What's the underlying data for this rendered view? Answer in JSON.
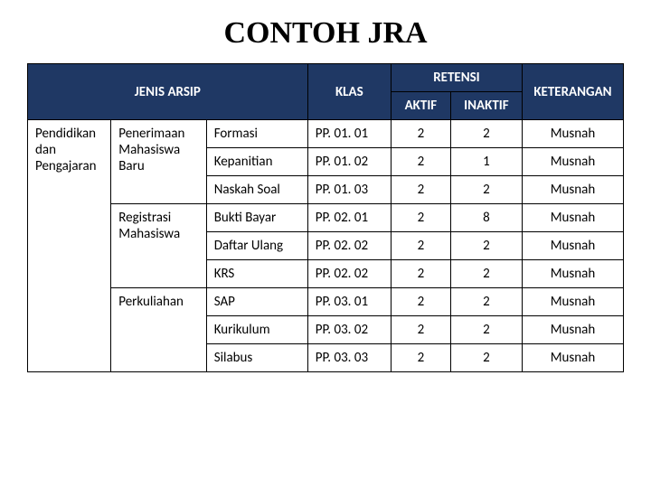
{
  "title": "CONTOH  JRA",
  "headers": {
    "jenis": "JENIS ARSIP",
    "klas": "KLAS",
    "retensi": "RETENSI",
    "aktif": "AKTIF",
    "inaktif": "INAKTIF",
    "keterangan": "KETERANGAN"
  },
  "j1": "Pendidikan dan Pengajaran",
  "j2a": "Penerimaan Mahasiswa Baru",
  "j2b": "Registrasi Mahasiswa",
  "j2c": "Perkuliahan",
  "rows": [
    {
      "sub": "Formasi",
      "klas": "PP. 01. 01",
      "aktif": "2",
      "inaktif": "2",
      "ket": "Musnah"
    },
    {
      "sub": "Kepanitian",
      "klas": "PP. 01. 02",
      "aktif": "2",
      "inaktif": "1",
      "ket": "Musnah"
    },
    {
      "sub": "Naskah Soal",
      "klas": "PP. 01. 03",
      "aktif": "2",
      "inaktif": "2",
      "ket": "Musnah"
    },
    {
      "sub": "Bukti Bayar",
      "klas": "PP. 02. 01",
      "aktif": "2",
      "inaktif": "8",
      "ket": "Musnah"
    },
    {
      "sub": "Daftar Ulang",
      "klas": "PP. 02. 02",
      "aktif": "2",
      "inaktif": "2",
      "ket": "Musnah"
    },
    {
      "sub": "KRS",
      "klas": "PP. 02. 02",
      "aktif": "2",
      "inaktif": "2",
      "ket": "Musnah"
    },
    {
      "sub": "SAP",
      "klas": "PP. 03. 01",
      "aktif": "2",
      "inaktif": "2",
      "ket": "Musnah"
    },
    {
      "sub": "Kurikulum",
      "klas": "PP. 03. 02",
      "aktif": "2",
      "inaktif": "2",
      "ket": "Musnah"
    },
    {
      "sub": "Silabus",
      "klas": "PP. 03. 03",
      "aktif": "2",
      "inaktif": "2",
      "ket": "Musnah"
    }
  ],
  "style": {
    "header_bg": "#1f3864",
    "header_fg": "#ffffff",
    "cell_bg": "#ffffff",
    "border": "#000000",
    "title_fontsize": 34,
    "cell_fontsize": 15
  }
}
